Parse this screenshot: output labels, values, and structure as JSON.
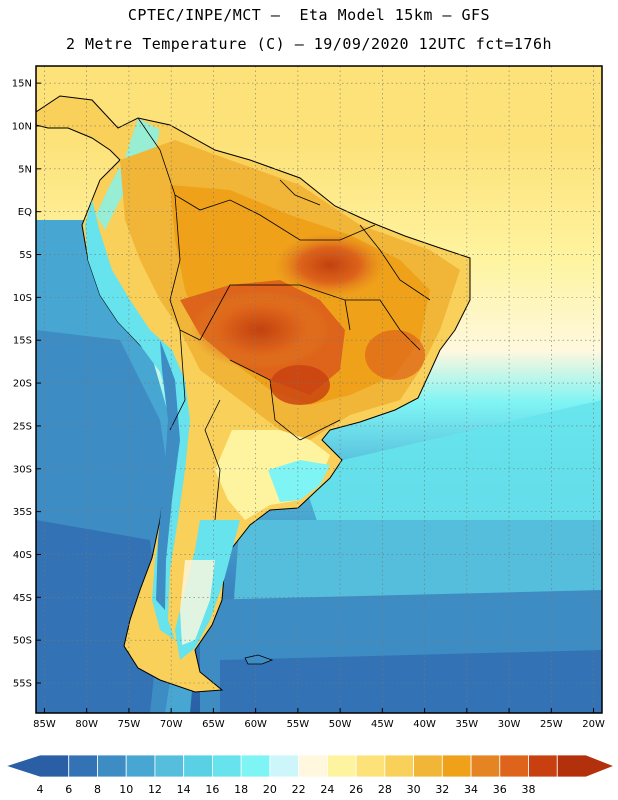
{
  "header": {
    "title_line1": "CPTEC/INPE/MCT –  Eta Model 15km – GFS",
    "title_line2": "2 Metre Temperature (C) – 19/09/2020 12UTC fct=176h"
  },
  "map": {
    "lat_labels": [
      "15N",
      "10N",
      "5N",
      "EQ",
      "5S",
      "10S",
      "15S",
      "20S",
      "25S",
      "30S",
      "35S",
      "40S",
      "45S",
      "50S",
      "55S"
    ],
    "lat_values": [
      15,
      10,
      5,
      0,
      -5,
      -10,
      -15,
      -20,
      -25,
      -30,
      -35,
      -40,
      -45,
      -50,
      -55
    ],
    "lon_labels": [
      "85W",
      "80W",
      "75W",
      "70W",
      "65W",
      "60W",
      "55W",
      "50W",
      "45W",
      "40W",
      "35W",
      "30W",
      "25W",
      "20W"
    ],
    "lon_values": [
      -85,
      -80,
      -75,
      -70,
      -65,
      -60,
      -55,
      -50,
      -45,
      -40,
      -35,
      -30,
      -25,
      -20
    ],
    "lon_range": [
      -86,
      -19
    ],
    "lat_range": [
      -58.5,
      17
    ]
  },
  "colorbar": {
    "labels": [
      "4",
      "6",
      "8",
      "10",
      "12",
      "14",
      "16",
      "18",
      "20",
      "22",
      "24",
      "26",
      "28",
      "30",
      "32",
      "34",
      "36",
      "38"
    ],
    "colors": [
      "#2a5fa5",
      "#3373b5",
      "#3d8cc4",
      "#48a6d2",
      "#55bedc",
      "#5ad0e5",
      "#66e3ec",
      "#7ff4f4",
      "#cdf6fb",
      "#fff8de",
      "#fef4a0",
      "#fde27a",
      "#f9d05a",
      "#f1b638",
      "#eea119",
      "#e58422",
      "#dd641a",
      "#c84010",
      "#b3300c"
    ]
  }
}
